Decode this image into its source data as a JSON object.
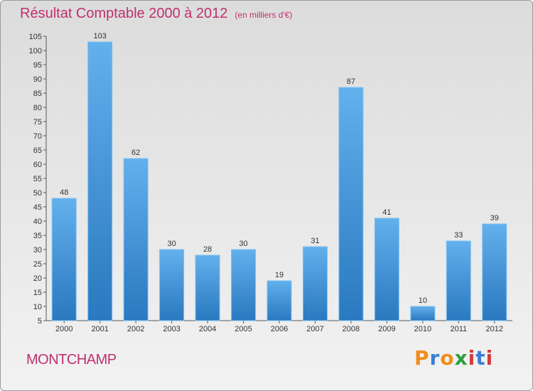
{
  "title": "Résultat Comptable 2000 à 2012",
  "subtitle": "(en milliers d'€)",
  "commune": "MONTCHAMP",
  "brand": {
    "text": "Proxiti",
    "letters": [
      "P",
      "r",
      "o",
      "x",
      "i",
      "t",
      "i"
    ],
    "colors": [
      "#f28c1c",
      "#3a7fd5",
      "#f28c1c",
      "#2e9e3e",
      "#d63a3a",
      "#3a7fd5",
      "#d63a3a"
    ]
  },
  "chart_data": {
    "type": "bar",
    "title": "Résultat Comptable 2000 à 2012",
    "subtitle": "(en milliers d'€)",
    "xlabel": "",
    "ylabel": "",
    "categories": [
      "2000",
      "2001",
      "2002",
      "2003",
      "2004",
      "2005",
      "2006",
      "2007",
      "2008",
      "2009",
      "2010",
      "2011",
      "2012"
    ],
    "values": [
      48,
      103,
      62,
      30,
      28,
      30,
      19,
      31,
      87,
      41,
      10,
      33,
      39
    ],
    "ylim": [
      5,
      105
    ],
    "yticks": [
      5,
      10,
      15,
      20,
      25,
      30,
      35,
      40,
      45,
      50,
      55,
      60,
      65,
      70,
      75,
      80,
      85,
      90,
      95,
      100,
      105
    ],
    "grid": false,
    "bar_color": "#3d8fd6"
  }
}
